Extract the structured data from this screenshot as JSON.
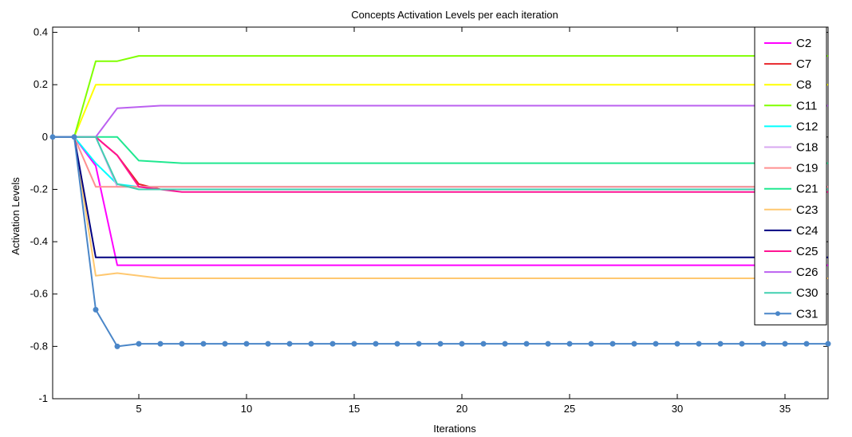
{
  "chart_data": {
    "type": "line",
    "title": "Concepts Activation Levels per  each iteration",
    "xlabel": "Iterations",
    "ylabel": "Activation Levels",
    "xlim": [
      1,
      37
    ],
    "ylim": [
      -1,
      0.42
    ],
    "xticks": [
      5,
      10,
      15,
      20,
      25,
      30,
      35
    ],
    "yticks": [
      0.4,
      0.2,
      0,
      -0.2,
      -0.4,
      -0.6,
      -0.8,
      -1
    ],
    "ytick_labels": [
      "0.4",
      "0.2",
      "0",
      "-0.2",
      "-0.4",
      "-0.6",
      "-0.8",
      "-1"
    ],
    "grid": false,
    "legend_position": "right",
    "series": [
      {
        "name": "C2",
        "color": "#ff00ff",
        "points": [
          [
            1,
            0
          ],
          [
            2,
            0
          ],
          [
            3,
            -0.11
          ],
          [
            4,
            -0.49
          ],
          [
            37,
            -0.49
          ]
        ]
      },
      {
        "name": "C7",
        "color": "#e8242a",
        "points": [
          [
            1,
            0
          ],
          [
            2,
            0
          ],
          [
            3,
            0
          ],
          [
            4,
            -0.07
          ],
          [
            5,
            -0.18
          ],
          [
            6,
            -0.2
          ],
          [
            37,
            -0.2
          ]
        ]
      },
      {
        "name": "C8",
        "color": "#ffff00",
        "points": [
          [
            1,
            0
          ],
          [
            2,
            0
          ],
          [
            3,
            0.2
          ],
          [
            37,
            0.2
          ]
        ]
      },
      {
        "name": "C11",
        "color": "#80ff00",
        "points": [
          [
            1,
            0
          ],
          [
            2,
            0
          ],
          [
            3,
            0.29
          ],
          [
            4,
            0.29
          ],
          [
            5,
            0.31
          ],
          [
            37,
            0.31
          ]
        ]
      },
      {
        "name": "C12",
        "color": "#00ffff",
        "points": [
          [
            1,
            0
          ],
          [
            2,
            0
          ],
          [
            3,
            -0.1
          ],
          [
            4,
            -0.18
          ],
          [
            5,
            -0.19
          ],
          [
            37,
            -0.19
          ]
        ]
      },
      {
        "name": "C18",
        "color": "#d8a8f0",
        "points": [
          [
            1,
            0
          ],
          [
            2,
            0
          ],
          [
            3,
            0
          ],
          [
            4,
            -0.19
          ],
          [
            37,
            -0.19
          ]
        ]
      },
      {
        "name": "C19",
        "color": "#ff9090",
        "points": [
          [
            1,
            0
          ],
          [
            2,
            0
          ],
          [
            3,
            -0.19
          ],
          [
            4,
            -0.19
          ],
          [
            37,
            -0.19
          ]
        ]
      },
      {
        "name": "C21",
        "color": "#20e890",
        "points": [
          [
            1,
            0
          ],
          [
            2,
            0
          ],
          [
            3,
            0
          ],
          [
            4,
            0
          ],
          [
            5,
            -0.09
          ],
          [
            7,
            -0.1
          ],
          [
            37,
            -0.1
          ]
        ]
      },
      {
        "name": "C23",
        "color": "#ffc870",
        "points": [
          [
            1,
            0
          ],
          [
            2,
            0
          ],
          [
            3,
            -0.53
          ],
          [
            4,
            -0.52
          ],
          [
            6,
            -0.54
          ],
          [
            37,
            -0.54
          ]
        ]
      },
      {
        "name": "C24",
        "color": "#000080",
        "points": [
          [
            1,
            0
          ],
          [
            2,
            0
          ],
          [
            3,
            -0.46
          ],
          [
            37,
            -0.46
          ]
        ]
      },
      {
        "name": "C25",
        "color": "#ff1493",
        "points": [
          [
            1,
            0
          ],
          [
            2,
            0
          ],
          [
            3,
            0
          ],
          [
            4,
            -0.07
          ],
          [
            5,
            -0.19
          ],
          [
            7,
            -0.21
          ],
          [
            37,
            -0.21
          ]
        ]
      },
      {
        "name": "C26",
        "color": "#bb60f0",
        "points": [
          [
            1,
            0
          ],
          [
            2,
            0
          ],
          [
            3,
            0
          ],
          [
            4,
            0.11
          ],
          [
            6,
            0.12
          ],
          [
            37,
            0.12
          ]
        ]
      },
      {
        "name": "C30",
        "color": "#40d0b0",
        "points": [
          [
            1,
            0
          ],
          [
            2,
            0
          ],
          [
            3,
            0
          ],
          [
            4,
            -0.18
          ],
          [
            5,
            -0.2
          ],
          [
            37,
            -0.2
          ]
        ]
      },
      {
        "name": "C31",
        "color": "#4a86c8",
        "markers": true,
        "points": [
          [
            1,
            0
          ],
          [
            2,
            0
          ],
          [
            3,
            -0.66
          ],
          [
            4,
            -0.8
          ],
          [
            5,
            -0.79
          ],
          [
            6,
            -0.79
          ],
          [
            7,
            -0.79
          ],
          [
            8,
            -0.79
          ],
          [
            9,
            -0.79
          ],
          [
            10,
            -0.79
          ],
          [
            11,
            -0.79
          ],
          [
            12,
            -0.79
          ],
          [
            13,
            -0.79
          ],
          [
            14,
            -0.79
          ],
          [
            15,
            -0.79
          ],
          [
            16,
            -0.79
          ],
          [
            17,
            -0.79
          ],
          [
            18,
            -0.79
          ],
          [
            19,
            -0.79
          ],
          [
            20,
            -0.79
          ],
          [
            21,
            -0.79
          ],
          [
            22,
            -0.79
          ],
          [
            23,
            -0.79
          ],
          [
            24,
            -0.79
          ],
          [
            25,
            -0.79
          ],
          [
            26,
            -0.79
          ],
          [
            27,
            -0.79
          ],
          [
            28,
            -0.79
          ],
          [
            29,
            -0.79
          ],
          [
            30,
            -0.79
          ],
          [
            31,
            -0.79
          ],
          [
            32,
            -0.79
          ],
          [
            33,
            -0.79
          ],
          [
            34,
            -0.79
          ],
          [
            35,
            -0.79
          ],
          [
            36,
            -0.79
          ],
          [
            37,
            -0.79
          ]
        ]
      }
    ]
  }
}
